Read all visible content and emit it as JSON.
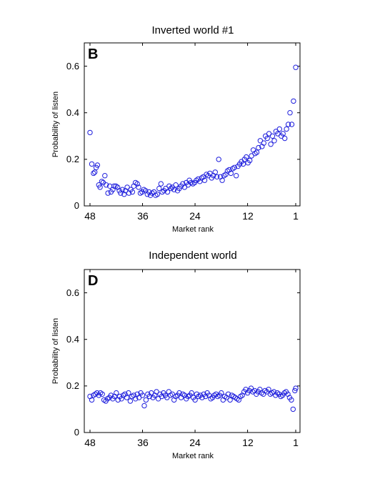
{
  "chart_data": [
    {
      "type": "scatter",
      "title": "Inverted world #1",
      "panel_letter": "B",
      "xlabel": "Market rank",
      "ylabel": "Probability of listen",
      "xlim": [
        48,
        1
      ],
      "ylim": [
        0,
        0.7
      ],
      "xticks": [
        "48",
        "36",
        "24",
        "12",
        "1"
      ],
      "yticks": [
        "0",
        "0.2",
        "0.4",
        "0.6"
      ],
      "marker_color": "#1f1fdd",
      "series": [
        {
          "x": [
            48.0,
            47.6,
            47.2,
            46.9,
            46.6,
            46.3,
            46.0,
            45.7,
            45.3,
            45.0,
            44.6,
            44.3,
            43.9,
            43.5,
            43.2,
            42.8,
            42.5,
            42.1,
            41.7,
            41.3,
            41.0,
            40.6,
            40.2,
            39.9,
            39.5,
            39.1,
            38.7,
            38.3,
            38.0,
            37.6,
            37.2,
            36.9,
            36.5,
            36.1,
            35.7,
            35.3,
            34.9,
            34.5,
            34.2,
            33.8,
            33.4,
            33.0,
            32.6,
            32.2,
            31.8,
            31.5,
            31.1,
            30.7,
            30.3,
            29.9,
            29.5,
            29.2,
            28.8,
            28.4,
            28.0,
            27.6,
            27.2,
            26.8,
            26.4,
            26.0,
            25.6,
            25.3,
            24.9,
            24.5,
            24.1,
            23.7,
            23.3,
            22.9,
            22.5,
            22.1,
            21.8,
            21.4,
            21.0,
            20.6,
            20.2,
            19.8,
            19.4,
            19.0,
            18.6,
            18.2,
            17.8,
            17.4,
            17.0,
            16.6,
            16.2,
            15.8,
            15.4,
            15.0,
            14.6,
            14.2,
            13.8,
            13.4,
            13.0,
            12.7,
            12.3,
            11.9,
            11.5,
            11.1,
            10.7,
            10.3,
            9.9,
            9.5,
            9.1,
            8.7,
            8.3,
            7.9,
            7.5,
            7.1,
            6.7,
            6.3,
            5.9,
            5.5,
            5.1,
            4.7,
            4.3,
            3.9,
            3.5,
            3.1,
            2.7,
            2.3,
            1.9,
            1.5,
            1.0
          ],
          "y": [
            0.315,
            0.18,
            0.14,
            0.145,
            0.165,
            0.175,
            0.09,
            0.08,
            0.105,
            0.1,
            0.13,
            0.09,
            0.055,
            0.085,
            0.06,
            0.07,
            0.085,
            0.085,
            0.08,
            0.065,
            0.055,
            0.07,
            0.05,
            0.065,
            0.08,
            0.055,
            0.07,
            0.06,
            0.085,
            0.1,
            0.095,
            0.08,
            0.055,
            0.06,
            0.07,
            0.065,
            0.05,
            0.06,
            0.045,
            0.055,
            0.06,
            0.045,
            0.05,
            0.075,
            0.095,
            0.06,
            0.065,
            0.075,
            0.06,
            0.085,
            0.075,
            0.08,
            0.07,
            0.09,
            0.065,
            0.075,
            0.085,
            0.095,
            0.08,
            0.1,
            0.09,
            0.11,
            0.1,
            0.095,
            0.1,
            0.11,
            0.115,
            0.105,
            0.12,
            0.125,
            0.11,
            0.135,
            0.13,
            0.14,
            0.12,
            0.13,
            0.145,
            0.125,
            0.2,
            0.125,
            0.11,
            0.13,
            0.135,
            0.15,
            0.155,
            0.14,
            0.16,
            0.165,
            0.13,
            0.17,
            0.18,
            0.19,
            0.18,
            0.2,
            0.21,
            0.185,
            0.195,
            0.215,
            0.24,
            0.225,
            0.23,
            0.25,
            0.28,
            0.255,
            0.27,
            0.3,
            0.29,
            0.31,
            0.265,
            0.3,
            0.28,
            0.32,
            0.31,
            0.33,
            0.3,
            0.31,
            0.29,
            0.33,
            0.35,
            0.4,
            0.35,
            0.45,
            0.595
          ]
        }
      ]
    },
    {
      "type": "scatter",
      "title": "Independent world",
      "panel_letter": "D",
      "xlabel": "Market rank",
      "ylabel": "Probability of listen",
      "xlim": [
        48,
        1
      ],
      "ylim": [
        0,
        0.7
      ],
      "xticks": [
        "48",
        "36",
        "24",
        "12",
        "1"
      ],
      "yticks": [
        "0",
        "0.2",
        "0.4",
        "0.6"
      ],
      "marker_color": "#1f1fdd",
      "series": [
        {
          "x": [
            48.0,
            47.6,
            47.2,
            46.8,
            46.4,
            46.0,
            45.6,
            45.2,
            44.8,
            44.4,
            44.0,
            43.6,
            43.2,
            42.8,
            42.4,
            42.0,
            41.6,
            41.2,
            40.8,
            40.4,
            40.0,
            39.6,
            39.2,
            38.8,
            38.4,
            38.0,
            37.6,
            37.2,
            36.8,
            36.4,
            36.0,
            35.6,
            35.2,
            34.8,
            34.4,
            34.0,
            33.6,
            33.2,
            32.8,
            32.4,
            32.0,
            31.6,
            31.2,
            30.8,
            30.4,
            30.0,
            29.6,
            29.2,
            28.8,
            28.4,
            28.0,
            27.6,
            27.2,
            26.8,
            26.4,
            26.0,
            25.6,
            25.2,
            24.8,
            24.4,
            24.0,
            23.6,
            23.2,
            22.8,
            22.4,
            22.0,
            21.6,
            21.2,
            20.8,
            20.4,
            20.0,
            19.6,
            19.2,
            18.8,
            18.4,
            18.0,
            17.6,
            17.2,
            16.8,
            16.4,
            16.0,
            15.6,
            15.2,
            14.8,
            14.4,
            14.0,
            13.6,
            13.2,
            12.8,
            12.4,
            12.0,
            11.6,
            11.2,
            10.8,
            10.4,
            10.0,
            9.6,
            9.2,
            8.8,
            8.4,
            8.0,
            7.6,
            7.2,
            6.8,
            6.4,
            6.0,
            5.6,
            5.2,
            4.8,
            4.4,
            4.0,
            3.6,
            3.2,
            2.8,
            2.4,
            2.0,
            1.6,
            1.2,
            1.0
          ],
          "y": [
            0.155,
            0.14,
            0.16,
            0.165,
            0.17,
            0.16,
            0.17,
            0.165,
            0.14,
            0.135,
            0.145,
            0.15,
            0.16,
            0.145,
            0.155,
            0.17,
            0.14,
            0.155,
            0.145,
            0.16,
            0.165,
            0.15,
            0.17,
            0.135,
            0.155,
            0.16,
            0.145,
            0.165,
            0.15,
            0.17,
            0.16,
            0.115,
            0.14,
            0.165,
            0.155,
            0.17,
            0.15,
            0.16,
            0.175,
            0.145,
            0.165,
            0.155,
            0.17,
            0.16,
            0.15,
            0.175,
            0.16,
            0.165,
            0.14,
            0.155,
            0.16,
            0.17,
            0.15,
            0.165,
            0.16,
            0.145,
            0.155,
            0.16,
            0.17,
            0.15,
            0.14,
            0.165,
            0.155,
            0.16,
            0.15,
            0.165,
            0.155,
            0.17,
            0.16,
            0.145,
            0.15,
            0.16,
            0.165,
            0.155,
            0.16,
            0.17,
            0.14,
            0.155,
            0.15,
            0.165,
            0.14,
            0.16,
            0.155,
            0.15,
            0.145,
            0.14,
            0.155,
            0.16,
            0.175,
            0.185,
            0.17,
            0.18,
            0.19,
            0.175,
            0.18,
            0.165,
            0.175,
            0.185,
            0.17,
            0.165,
            0.18,
            0.175,
            0.185,
            0.165,
            0.17,
            0.175,
            0.16,
            0.17,
            0.165,
            0.155,
            0.16,
            0.17,
            0.175,
            0.165,
            0.15,
            0.14,
            0.1,
            0.18,
            0.19
          ]
        }
      ]
    }
  ]
}
